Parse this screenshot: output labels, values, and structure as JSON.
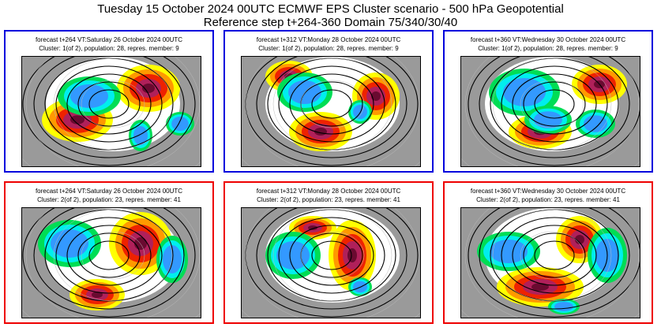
{
  "header": {
    "title": "Tuesday 15 October 2024 00UTC ECMWF EPS Cluster scenario - 500 hPa Geopotential",
    "subtitle": "Reference step t+264-360 Domain 75/340/30/40"
  },
  "colors": {
    "cluster1_border": "#0000dd",
    "cluster2_border": "#ee0000"
  },
  "panels": [
    {
      "forecast": "forecast t+264 VT:Saturday 26 October 2024 00UTC",
      "cluster": "Cluster: 1(of 2), population: 28, repres. member: 9"
    },
    {
      "forecast": "forecast t+312 VT:Monday 28 October 2024 00UTC",
      "cluster": "Cluster: 1(of 2), population: 28, repres. member: 9"
    },
    {
      "forecast": "forecast t+360 VT:Wednesday 30 October 2024 00UTC",
      "cluster": "Cluster: 1(of 2), population: 28, repres. member: 9"
    },
    {
      "forecast": "forecast t+264 VT:Saturday 26 October 2024 00UTC",
      "cluster": "Cluster: 2(of 2), population: 23, repres. member: 41"
    },
    {
      "forecast": "forecast t+312 VT:Monday 28 October 2024 00UTC",
      "cluster": "Cluster: 2(of 2), population: 23, repres. member: 41"
    },
    {
      "forecast": "forecast t+360 VT:Wednesday 30 October 2024 00UTC",
      "cluster": "Cluster: 2(of 2), population: 23, repres. member: 41"
    }
  ]
}
